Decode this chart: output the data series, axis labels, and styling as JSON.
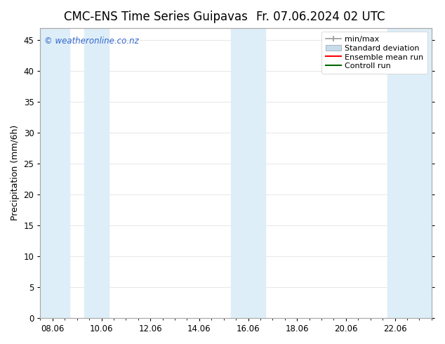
{
  "title_left": "CMC-ENS Time Series Guipavas",
  "title_right": "Fr. 07.06.2024 02 UTC",
  "ylabel": "Precipitation (mm/6h)",
  "background_color": "#ffffff",
  "plot_bg_color": "#ffffff",
  "ylim": [
    0,
    47
  ],
  "yticks": [
    0,
    5,
    10,
    15,
    20,
    25,
    30,
    35,
    40,
    45
  ],
  "xtick_labels": [
    "08.06",
    "10.06",
    "12.06",
    "14.06",
    "16.06",
    "18.06",
    "20.06",
    "22.06"
  ],
  "xtick_positions": [
    0,
    2,
    4,
    6,
    8,
    10,
    12,
    14
  ],
  "xlim": [
    -0.5,
    15.5
  ],
  "shaded_bands": [
    [
      -0.5,
      0.7
    ],
    [
      1.3,
      2.3
    ],
    [
      7.3,
      8.7
    ],
    [
      13.7,
      15.5
    ]
  ],
  "band_color": "#ddeef8",
  "legend_labels": [
    "min/max",
    "Standard deviation",
    "Ensemble mean run",
    "Controll run"
  ],
  "line_minmax_color": "#999999",
  "line_std_color": "#aabbcc",
  "line_ensemble_color": "#ff0000",
  "line_control_color": "#006600",
  "watermark": "© weatheronline.co.nz",
  "watermark_color": "#3366cc",
  "title_fontsize": 12,
  "axis_fontsize": 9,
  "tick_fontsize": 8.5,
  "legend_fontsize": 8
}
